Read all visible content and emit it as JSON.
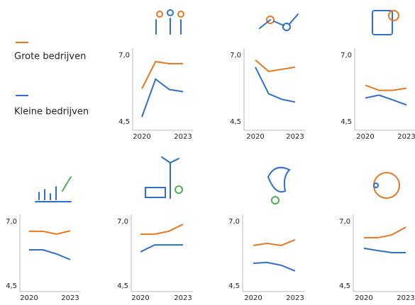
{
  "legend": [
    {
      "name": "Grote bedrijven",
      "color": "#e87722"
    },
    {
      "name": "Kleine bedrijven",
      "color": "#2f6fc9"
    }
  ],
  "chart_data": [
    {
      "type": "line",
      "x": [
        2020,
        2021,
        2022,
        2023
      ],
      "xlim": [
        2020,
        2023
      ],
      "xticks": [
        2020,
        2023
      ],
      "ylim": [
        4.5,
        7
      ],
      "yticks": [
        {
          "value": 7,
          "label": "7,0"
        },
        {
          "value": 4.5,
          "label": "4,5"
        }
      ],
      "series": [
        {
          "values": [
            5.74,
            6.76,
            6.68,
            6.68
          ]
        },
        {
          "values": [
            4.68,
            6.1,
            5.71,
            5.63
          ]
        }
      ]
    },
    {
      "type": "line",
      "x": [
        2020,
        2021,
        2022,
        2023
      ],
      "xlim": [
        2020,
        2023
      ],
      "xticks": [
        2020,
        2023
      ],
      "ylim": [
        4.5,
        7
      ],
      "yticks": [
        {
          "value": 7,
          "label": "7,0"
        },
        {
          "value": 4.5,
          "label": "4,5"
        }
      ],
      "series": [
        {
          "values": [
            6.82,
            6.39,
            6.47,
            6.55
          ]
        },
        {
          "values": [
            6.55,
            5.55,
            5.34,
            5.24
          ]
        }
      ]
    },
    {
      "type": "line",
      "x": [
        2020,
        2021,
        2022,
        2023
      ],
      "xlim": [
        2020,
        2023
      ],
      "xticks": [
        2020,
        2023
      ],
      "ylim": [
        4.5,
        7
      ],
      "yticks": [
        {
          "value": 7,
          "label": "7,0"
        },
        {
          "value": 4.5,
          "label": "4,5"
        }
      ],
      "series": [
        {
          "values": [
            5.87,
            5.68,
            5.68,
            5.76
          ]
        },
        {
          "values": [
            5.39,
            5.5,
            5.32,
            5.13
          ]
        }
      ]
    },
    {
      "type": "line",
      "x": [
        2020,
        2021,
        2022,
        2023
      ],
      "xlim": [
        2020,
        2023
      ],
      "xticks": [
        2020,
        2023
      ],
      "ylim": [
        4.5,
        7
      ],
      "yticks": [
        {
          "value": 7,
          "label": "7,0"
        },
        {
          "value": 4.5,
          "label": "4,5"
        }
      ],
      "series": [
        {
          "values": [
            6.62,
            6.62,
            6.51,
            6.64
          ]
        },
        {
          "values": [
            5.9,
            5.9,
            5.74,
            5.52
          ]
        }
      ]
    },
    {
      "type": "line",
      "x": [
        2020,
        2021,
        2022,
        2023
      ],
      "xlim": [
        2020,
        2023
      ],
      "xticks": [
        2020,
        2023
      ],
      "ylim": [
        4.5,
        7
      ],
      "yticks": [
        {
          "value": 7,
          "label": "7,0"
        },
        {
          "value": 4.5,
          "label": "4,5"
        }
      ],
      "series": [
        {
          "values": [
            6.51,
            6.51,
            6.62,
            6.89
          ]
        },
        {
          "values": [
            5.82,
            6.09,
            6.09,
            6.09
          ]
        }
      ]
    },
    {
      "type": "line",
      "x": [
        2020,
        2021,
        2022,
        2023
      ],
      "xlim": [
        2020,
        2023
      ],
      "xticks": [
        2020,
        2023
      ],
      "ylim": [
        4.5,
        7
      ],
      "yticks": [
        {
          "value": 7,
          "label": "7,0"
        },
        {
          "value": 4.5,
          "label": "4,5"
        }
      ],
      "series": [
        {
          "values": [
            6.07,
            6.15,
            6.07,
            6.29
          ]
        },
        {
          "values": [
            5.38,
            5.41,
            5.3,
            5.08
          ]
        }
      ]
    },
    {
      "type": "line",
      "x": [
        2020,
        2021,
        2022,
        2023
      ],
      "xlim": [
        2020,
        2023
      ],
      "xticks": [
        2020,
        2023
      ],
      "ylim": [
        4.5,
        7
      ],
      "yticks": [
        {
          "value": 7,
          "label": "7,0"
        },
        {
          "value": 4.5,
          "label": "4,5"
        }
      ],
      "series": [
        {
          "values": [
            6.37,
            6.37,
            6.48,
            6.78
          ]
        },
        {
          "values": [
            5.96,
            5.87,
            5.79,
            5.79
          ]
        }
      ]
    }
  ]
}
